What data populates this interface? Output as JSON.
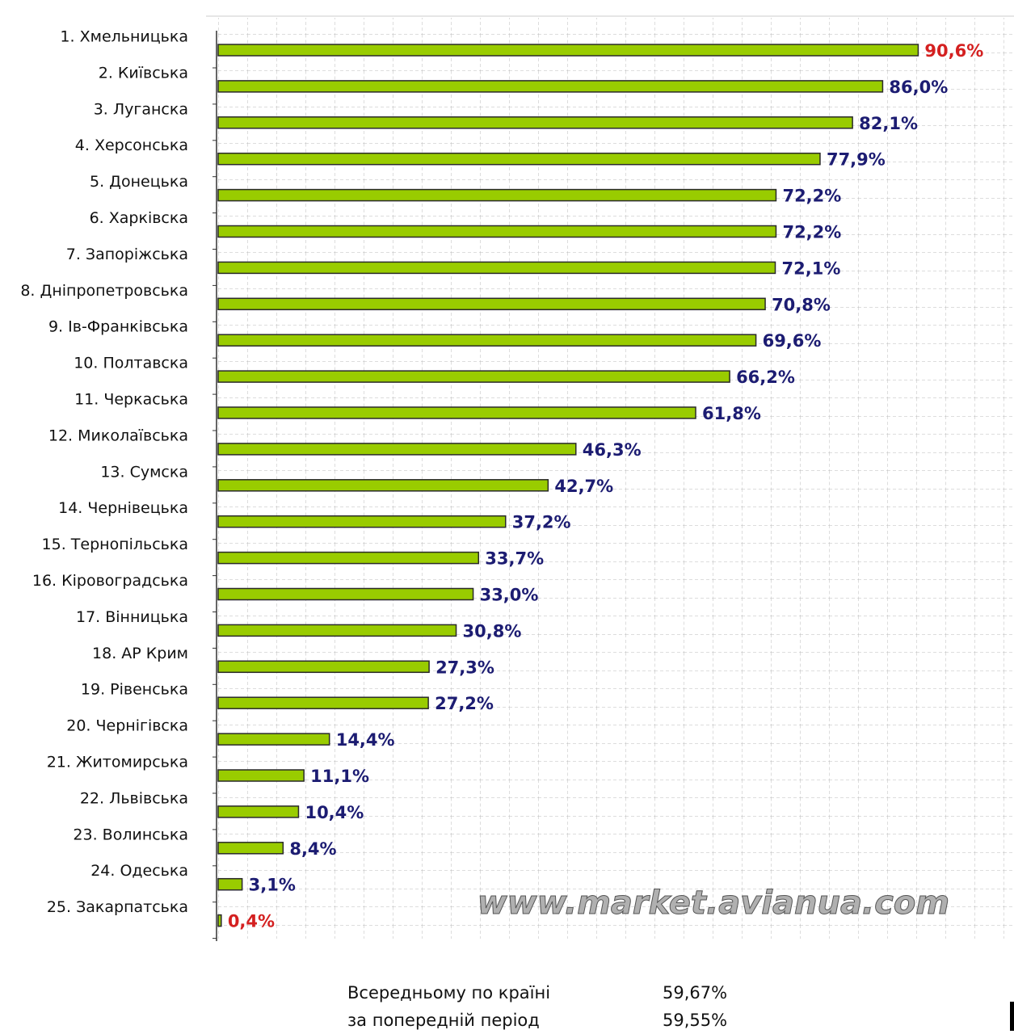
{
  "chart_data": {
    "type": "hbar",
    "categories": [
      "1. Хмельницька",
      "2. Київська",
      "3. Луганска",
      "4. Херсонська",
      "5. Донецька",
      "6. Харківска",
      "7. Запоріжська",
      "8. Дніпропетровська",
      "9. Ів-Франківська",
      "10. Полтавска",
      "11. Черкаська",
      "12. Миколаївська",
      "13. Сумска",
      "14. Чернівецька",
      "15. Тернопільська",
      "16. Кіровоградська",
      "17. Вінницька",
      "18. АР Крим",
      "19. Рівенська",
      "20. Чернігівска",
      "21. Житомирська",
      "22. Львівська",
      "23. Волинська",
      "24. Одеська",
      "25. Закарпатська"
    ],
    "values": [
      90.6,
      86.0,
      82.1,
      77.9,
      72.2,
      72.2,
      72.1,
      70.8,
      69.6,
      66.2,
      61.8,
      46.3,
      42.7,
      37.2,
      33.7,
      33.0,
      30.8,
      27.3,
      27.2,
      14.4,
      11.1,
      10.4,
      8.4,
      3.1,
      0.4
    ],
    "value_labels": [
      "90,6%",
      "86,0%",
      "82,1%",
      "77,9%",
      "72,2%",
      "72,2%",
      "72,1%",
      "70,8%",
      "69,6%",
      "66,2%",
      "61,8%",
      "46,3%",
      "42,7%",
      "37,2%",
      "33,7%",
      "33,0%",
      "30,8%",
      "27,3%",
      "27,2%",
      "14,4%",
      "11,1%",
      "10,4%",
      "8,4%",
      "3,1%",
      "0,4%"
    ],
    "value_label_colors": [
      "#d42020",
      "#1c1c72",
      "#1c1c72",
      "#1c1c72",
      "#1c1c72",
      "#1c1c72",
      "#1c1c72",
      "#1c1c72",
      "#1c1c72",
      "#1c1c72",
      "#1c1c72",
      "#1c1c72",
      "#1c1c72",
      "#1c1c72",
      "#1c1c72",
      "#1c1c72",
      "#1c1c72",
      "#1c1c72",
      "#1c1c72",
      "#1c1c72",
      "#1c1c72",
      "#1c1c72",
      "#1c1c72",
      "#1c1c72",
      "#d42020"
    ],
    "color": "#99cc00",
    "xlim": [
      0,
      103
    ],
    "grid": true,
    "watermark": "www.market.avianua.com",
    "summary": [
      {
        "label": "Всередньому по країні",
        "text": "59,67%"
      },
      {
        "label": "за попередній період",
        "text": "59,55%"
      }
    ]
  }
}
